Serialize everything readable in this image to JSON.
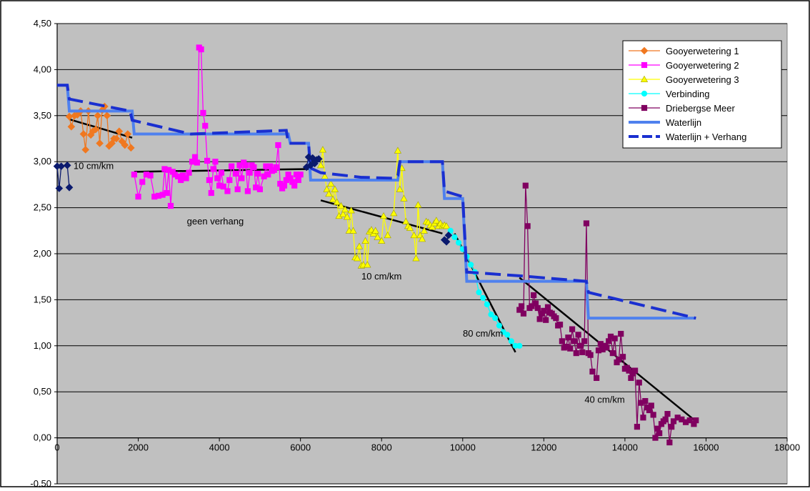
{
  "chart_data": {
    "type": "line",
    "title": "",
    "xlabel": "",
    "ylabel": "",
    "xlim": [
      0,
      18000
    ],
    "ylim": [
      -0.5,
      4.5
    ],
    "x_ticks": [
      0,
      2000,
      4000,
      6000,
      8000,
      10000,
      12000,
      14000,
      16000,
      18000
    ],
    "x_tick_labels": [
      "0",
      "2000",
      "4000",
      "6000",
      "8000",
      "10000",
      "12000",
      "14000",
      "16000",
      "18000"
    ],
    "y_ticks": [
      -0.5,
      0,
      0.5,
      1,
      1.5,
      2,
      2.5,
      3,
      3.5,
      4,
      4.5
    ],
    "y_tick_labels": [
      "-0,50",
      "0,00",
      "0,50",
      "1,00",
      "1,50",
      "2,00",
      "2,50",
      "3,00",
      "3,50",
      "4,00",
      "4,50"
    ],
    "grid": "horizontal",
    "plot_background": "#c0c0c0",
    "legend_position": "top-right",
    "series": [
      {
        "name": "Gooyerwetering 1",
        "color": "#f07820",
        "marker": "diamond",
        "line": "solid",
        "x": [
          300,
          350,
          430,
          500,
          580,
          650,
          700,
          770,
          830,
          880,
          950,
          1000,
          1050,
          1110,
          1170,
          1230,
          1280,
          1350,
          1400,
          1460,
          1530,
          1600,
          1670,
          1740,
          1820
        ],
        "y": [
          3.49,
          3.38,
          3.5,
          3.51,
          3.55,
          3.3,
          3.13,
          3.55,
          3.29,
          3.33,
          3.35,
          3.5,
          3.2,
          3.56,
          3.6,
          3.5,
          3.17,
          3.2,
          3.25,
          3.25,
          3.33,
          3.22,
          3.18,
          3.3,
          3.15
        ]
      },
      {
        "name": "Gooyerwetering 2",
        "color": "#ff00ff",
        "marker": "square",
        "line": "solid",
        "x": [
          1900,
          2000,
          2100,
          2200,
          2300,
          2400,
          2500,
          2600,
          2650,
          2700,
          2750,
          2800,
          2850,
          2900,
          2980,
          3050,
          3100,
          3180,
          3250,
          3330,
          3400,
          3450,
          3500,
          3550,
          3600,
          3650,
          3700,
          3750,
          3800,
          3850,
          3900,
          3950,
          4000,
          4050,
          4100,
          4200,
          4250,
          4300,
          4400,
          4450,
          4500,
          4550,
          4600,
          4650,
          4700,
          4750,
          4800,
          4850,
          4900,
          4950,
          5000,
          5100,
          5150,
          5200,
          5250,
          5300,
          5350,
          5400,
          5450,
          5500,
          5550,
          5600,
          5650,
          5700,
          5750,
          5800,
          5850,
          5900,
          5950,
          6000
        ],
        "y": [
          2.86,
          2.62,
          2.78,
          2.86,
          2.85,
          2.62,
          2.63,
          2.64,
          2.92,
          2.66,
          2.91,
          2.52,
          2.89,
          2.86,
          2.84,
          2.8,
          2.85,
          2.82,
          2.88,
          3.0,
          3.05,
          2.99,
          4.24,
          4.22,
          3.53,
          3.39,
          3.01,
          2.8,
          2.66,
          2.92,
          3.0,
          2.82,
          2.74,
          2.88,
          2.73,
          2.68,
          2.8,
          2.95,
          2.87,
          2.7,
          2.96,
          2.82,
          2.99,
          2.96,
          2.68,
          2.88,
          2.96,
          2.94,
          2.72,
          2.87,
          2.7,
          2.84,
          2.95,
          2.86,
          2.95,
          2.9,
          2.91,
          2.94,
          3.18,
          2.76,
          2.71,
          2.74,
          2.8,
          2.86,
          2.82,
          2.78,
          2.74,
          2.86,
          2.8,
          2.86
        ]
      },
      {
        "name": "Gooyerwetering 3",
        "color": "#ffff00",
        "marker": "triangle",
        "line": "solid",
        "x": [
          6500,
          6550,
          6600,
          6650,
          6700,
          6750,
          6800,
          6850,
          6900,
          6950,
          7000,
          7050,
          7100,
          7150,
          7200,
          7250,
          7300,
          7350,
          7400,
          7450,
          7500,
          7550,
          7600,
          7650,
          7700,
          7750,
          7800,
          7850,
          7900,
          8000,
          8050,
          8150,
          8300,
          8400,
          8450,
          8500,
          8550,
          8600,
          8650,
          8700,
          8800,
          8850,
          8900,
          8950,
          9000,
          9050,
          9100,
          9150,
          9200,
          9250,
          9300,
          9350,
          9400,
          9450,
          9500,
          9550,
          9600
        ],
        "y": [
          2.96,
          3.13,
          2.84,
          2.7,
          2.65,
          2.76,
          2.59,
          2.7,
          2.56,
          2.41,
          2.52,
          2.43,
          2.48,
          2.4,
          2.25,
          2.47,
          2.25,
          1.96,
          1.95,
          2.08,
          1.87,
          1.88,
          2.14,
          1.88,
          2.24,
          2.26,
          2.22,
          2.25,
          2.18,
          2.14,
          2.41,
          2.2,
          2.44,
          3.12,
          2.7,
          2.93,
          2.6,
          2.35,
          2.3,
          2.28,
          2.2,
          1.95,
          2.53,
          2.2,
          2.16,
          2.25,
          2.35,
          2.34,
          2.31,
          2.29,
          2.33,
          2.36,
          2.3,
          2.33,
          2.3,
          2.31,
          2.3
        ]
      },
      {
        "name": "Verbinding",
        "color": "#00ffff",
        "marker": "circle",
        "line": "solid",
        "x": [
          9700,
          9800,
          9900,
          10000,
          10100,
          10200,
          10300,
          10400,
          10500,
          10600,
          10700,
          10800,
          10900,
          11000,
          11100,
          11200,
          11300,
          11400
        ],
        "y": [
          2.25,
          2.18,
          2.12,
          2.05,
          1.97,
          1.88,
          1.8,
          1.58,
          1.52,
          1.45,
          1.34,
          1.3,
          1.22,
          1.15,
          1.12,
          1.05,
          1.0,
          1.0
        ]
      },
      {
        "name": "Driebergse Meer",
        "color": "#800060",
        "marker": "square",
        "line": "solid",
        "x": [
          11400,
          11450,
          11500,
          11550,
          11600,
          11650,
          11700,
          11750,
          11800,
          11850,
          11900,
          11950,
          12000,
          12050,
          12100,
          12150,
          12200,
          12250,
          12300,
          12350,
          12400,
          12450,
          12500,
          12550,
          12600,
          12650,
          12700,
          12750,
          12800,
          12850,
          12900,
          12950,
          13000,
          13050,
          13100,
          13150,
          13200,
          13300,
          13350,
          13400,
          13450,
          13500,
          13550,
          13600,
          13650,
          13700,
          13750,
          13800,
          13850,
          13900,
          13950,
          14000,
          14050,
          14100,
          14150,
          14200,
          14250,
          14300,
          14350,
          14400,
          14450,
          14500,
          14550,
          14600,
          14650,
          14700,
          14750,
          14800,
          14850,
          14900,
          14950,
          15000,
          15050,
          15100,
          15150,
          15200,
          15300,
          15400,
          15500,
          15600,
          15700,
          15750
        ],
        "y": [
          1.39,
          1.43,
          1.35,
          2.74,
          2.3,
          1.41,
          1.43,
          1.55,
          1.46,
          1.41,
          1.29,
          1.35,
          1.38,
          1.28,
          1.42,
          1.36,
          1.35,
          1.32,
          1.3,
          1.22,
          1.23,
          1.05,
          0.98,
          0.99,
          1.09,
          0.97,
          1.18,
          1.05,
          0.92,
          1.12,
          1.0,
          0.93,
          1.05,
          2.33,
          0.92,
          0.9,
          0.72,
          0.65,
          0.95,
          1.02,
          0.96,
          1.0,
          0.98,
          1.05,
          1.1,
          0.92,
          1.08,
          0.82,
          0.85,
          1.13,
          0.88,
          0.75,
          0.76,
          0.73,
          0.65,
          0.7,
          0.73,
          0.12,
          0.6,
          0.38,
          0.22,
          0.4,
          0.33,
          0.3,
          0.35,
          0.25,
          0.0,
          0.1,
          0.05,
          0.15,
          0.18,
          0.2,
          0.26,
          -0.05,
          0.12,
          0.18,
          0.22,
          0.2,
          0.17,
          0.19,
          0.15,
          0.19
        ]
      },
      {
        "name": "Waterlijn",
        "color": "#4f81ee",
        "marker": "none",
        "line": "solid-thick",
        "x": [
          0,
          250,
          300,
          1850,
          1900,
          5700,
          5750,
          6200,
          6250,
          8400,
          8450,
          9500,
          9550,
          10000,
          10100,
          11400,
          13050,
          13100,
          15750
        ],
        "y": [
          3.83,
          3.83,
          3.55,
          3.55,
          3.3,
          3.3,
          3.2,
          3.2,
          2.8,
          2.8,
          3.0,
          3.0,
          2.6,
          2.6,
          1.7,
          1.7,
          1.7,
          1.3,
          1.3
        ]
      },
      {
        "name": "Waterlijn + Verhang",
        "color": "#1a2fd0",
        "marker": "none",
        "line": "dashed",
        "x": [
          0,
          250,
          300,
          1800,
          1850,
          3300,
          5650,
          5700,
          6200,
          6250,
          6500,
          7500,
          8300,
          8400,
          8450,
          9500,
          9550,
          10000,
          10100,
          11400,
          13050,
          13100,
          15750
        ],
        "y": [
          3.83,
          3.83,
          3.68,
          3.55,
          3.45,
          3.3,
          3.34,
          3.2,
          3.2,
          2.93,
          2.88,
          2.83,
          2.82,
          2.85,
          3.0,
          3.0,
          2.68,
          2.62,
          1.8,
          1.76,
          1.7,
          1.58,
          1.3
        ]
      },
      {
        "name": "",
        "color": "#0b1a6e",
        "marker": "diamond",
        "line": "solid",
        "legend": false,
        "x": [
          0,
          50,
          100,
          250,
          300
        ],
        "y": [
          2.95,
          2.71,
          2.95,
          2.96,
          2.72
        ]
      },
      {
        "name": "",
        "color": "#0b1a6e",
        "marker": "diamond",
        "line": "solid",
        "legend": false,
        "x": [
          6150,
          6200,
          6250,
          6300,
          6350,
          6400,
          6450
        ],
        "y": [
          2.94,
          3.05,
          2.96,
          3.04,
          2.98,
          3.02,
          3.03
        ]
      },
      {
        "name": "",
        "color": "#0b1a6e",
        "marker": "diamond",
        "line": "solid",
        "legend": false,
        "x": [
          9550,
          9600,
          9650
        ],
        "y": [
          2.15,
          2.13,
          2.2
        ]
      }
    ],
    "trend_lines": [
      {
        "x": [
          300,
          1850
        ],
        "y": [
          3.46,
          3.26
        ],
        "color": "#000000"
      },
      {
        "x": [
          1900,
          6200
        ],
        "y": [
          2.89,
          2.92
        ],
        "color": "#000000"
      },
      {
        "x": [
          6500,
          9500
        ],
        "y": [
          2.58,
          2.22
        ],
        "color": "#000000"
      },
      {
        "x": [
          9800,
          11300
        ],
        "y": [
          2.22,
          0.93
        ],
        "color": "#000000"
      },
      {
        "x": [
          11400,
          15750
        ],
        "y": [
          1.74,
          0.18
        ],
        "color": "#000000"
      }
    ],
    "annotations": [
      {
        "text": "10 cm/km",
        "x": 900,
        "y": 2.92
      },
      {
        "text": "geen verhang",
        "x": 3900,
        "y": 2.32
      },
      {
        "text": "10 cm/km",
        "x": 8000,
        "y": 1.72
      },
      {
        "text": "80 cm/km",
        "x": 10500,
        "y": 1.1
      },
      {
        "text": "40 cm/km",
        "x": 13500,
        "y": 0.38
      }
    ]
  }
}
